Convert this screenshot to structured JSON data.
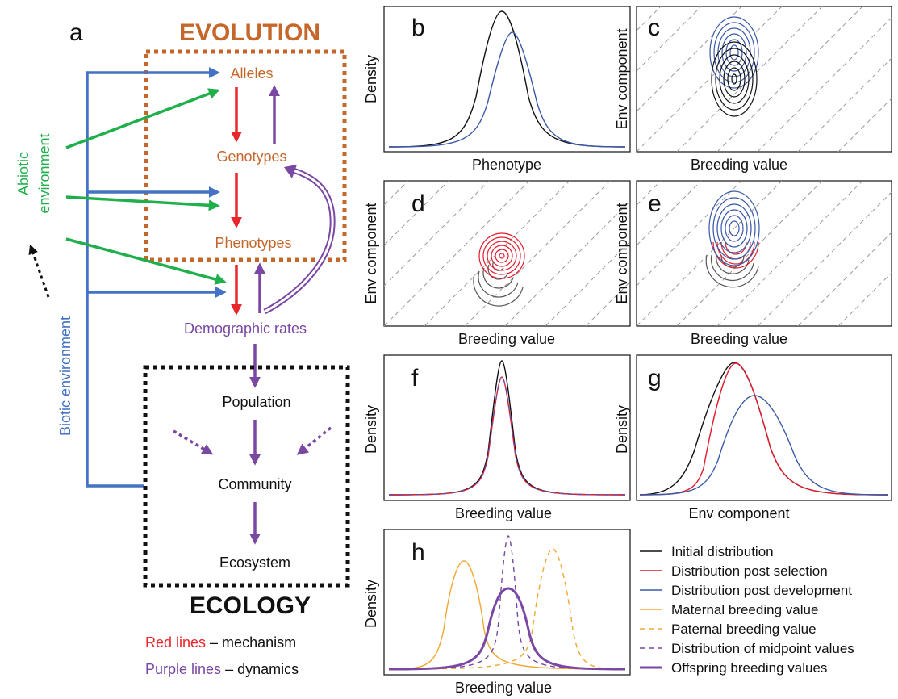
{
  "colors": {
    "evolution": "#c5662b",
    "red": "#e8262b",
    "purple": "#7a47a3",
    "blue": "#4472c4",
    "green": "#1faf4b",
    "black": "#111111",
    "orange": "#f0a830",
    "contour_red": "#e11b2c",
    "contour_blue": "#3a59a8",
    "grey_dash": "#9a9a9a"
  },
  "diagram": {
    "panel_letter": "a",
    "evolution_title": "EVOLUTION",
    "ecology_title": "ECOLOGY",
    "nodes": {
      "alleles": "Alleles",
      "genotypes": "Genotypes",
      "phenotypes": "Phenotypes",
      "demographic_rates": "Demographic rates",
      "population": "Population",
      "community": "Community",
      "ecosystem": "Ecosystem"
    },
    "abiotic_line1": "Abiotic",
    "abiotic_line2": "environment",
    "biotic": "Biotic environment",
    "key_red_lead": "Red lines",
    "key_red_rest": " – mechanism",
    "key_purple_lead": "Purple lines",
    "key_purple_rest": " – dynamics"
  },
  "panels": {
    "b": {
      "letter": "b",
      "xlabel": "Phenotype",
      "ylabel": "Density"
    },
    "c": {
      "letter": "c",
      "xlabel": "Breeding value",
      "ylabel": "Env component"
    },
    "d": {
      "letter": "d",
      "xlabel": "Breeding value",
      "ylabel": "Env component"
    },
    "e": {
      "letter": "e",
      "xlabel": "Breeding value",
      "ylabel": "Env component"
    },
    "f": {
      "letter": "f",
      "xlabel": "Breeding value",
      "ylabel": "Density"
    },
    "g": {
      "letter": "g",
      "xlabel": "Env component",
      "ylabel": "Density"
    },
    "h": {
      "letter": "h",
      "xlabel": "Breeding value",
      "ylabel": "Density"
    }
  },
  "legend": [
    {
      "label": "Initial distribution",
      "color": "#111111",
      "style": "solid"
    },
    {
      "label": "Distribution post selection",
      "color": "#e11b2c",
      "style": "solid"
    },
    {
      "label": "Distribution post development",
      "color": "#3a59a8",
      "style": "solid"
    },
    {
      "label": "Maternal breeding value",
      "color": "#f0a830",
      "style": "solid"
    },
    {
      "label": "Paternal breeding value",
      "color": "#f0a830",
      "style": "dashed"
    },
    {
      "label": "Distribution of midpoint values",
      "color": "#7a47a3",
      "style": "dashed"
    },
    {
      "label": "Offspring breeding values",
      "color": "#7a47a3",
      "style": "thick"
    }
  ]
}
